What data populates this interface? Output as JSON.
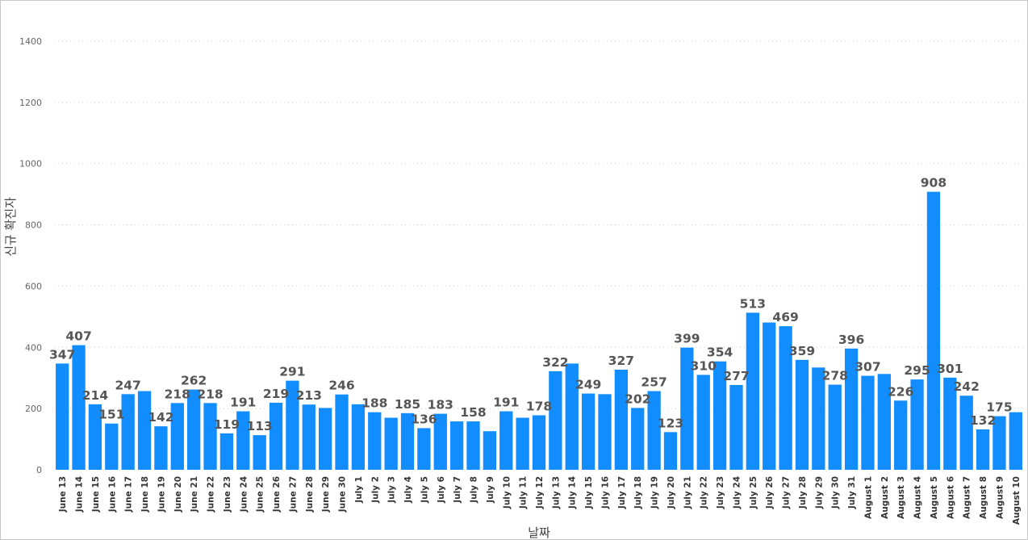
{
  "chart_data": {
    "type": "bar",
    "title": "",
    "xlabel": "날짜",
    "ylabel": "신규 확진자",
    "ylim": [
      0,
      1400
    ],
    "yticks": [
      0,
      200,
      400,
      600,
      800,
      1000,
      1200,
      1400
    ],
    "grid": true,
    "bar_color": "#118DFF",
    "categories": [
      "June 13",
      "June 14",
      "June 15",
      "June 16",
      "June 17",
      "June 18",
      "June 19",
      "June 20",
      "June 21",
      "June 22",
      "June 23",
      "June 24",
      "June 25",
      "June 26",
      "June 27",
      "June 28",
      "June 29",
      "June 30",
      "July 1",
      "July 2",
      "July 3",
      "July 4",
      "July 5",
      "July 6",
      "July 7",
      "July 8",
      "July 9",
      "July 10",
      "July 11",
      "July 12",
      "July 13",
      "July 14",
      "July 15",
      "July 16",
      "July 17",
      "July 18",
      "July 19",
      "July 20",
      "July 21",
      "July 22",
      "July 23",
      "July 24",
      "July 25",
      "July 26",
      "July 27",
      "July 28",
      "July 29",
      "July 30",
      "July 31",
      "August 1",
      "August 2",
      "August 3",
      "August 4",
      "August 5",
      "August 6",
      "August 7",
      "August 8",
      "August 9",
      "August 10"
    ],
    "values": [
      347,
      407,
      214,
      151,
      247,
      257,
      142,
      218,
      262,
      218,
      119,
      191,
      113,
      219,
      291,
      213,
      202,
      246,
      214,
      188,
      170,
      185,
      136,
      183,
      158,
      158,
      126,
      191,
      170,
      178,
      322,
      347,
      249,
      247,
      327,
      202,
      257,
      123,
      399,
      310,
      354,
      277,
      513,
      481,
      469,
      359,
      334,
      278,
      396,
      307,
      313,
      226,
      295,
      908,
      301,
      242,
      132,
      175,
      188
    ],
    "data_labels": [
      "347",
      "407",
      "214",
      "151",
      "247",
      "",
      "142",
      "218",
      "262",
      "218",
      "119",
      "191",
      "113",
      "219",
      "291",
      "213",
      "",
      "246",
      "",
      "188",
      "",
      "185",
      "136",
      "183",
      "",
      "158",
      "",
      "191",
      "",
      "178",
      "322",
      "",
      "249",
      "",
      "327",
      "202",
      "257",
      "123",
      "399",
      "310",
      "354",
      "277",
      "513",
      "",
      "469",
      "359",
      "",
      "278",
      "396",
      "307",
      "",
      "226",
      "295",
      "908",
      "301",
      "242",
      "132",
      "175",
      ""
    ]
  }
}
